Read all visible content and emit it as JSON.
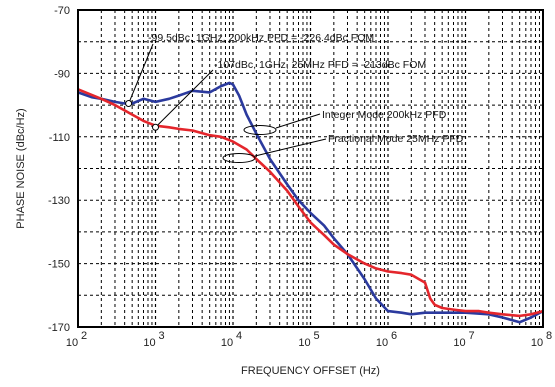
{
  "chart_data": {
    "type": "line",
    "title": "",
    "xlabel": "FREQUENCY OFFSET (Hz)",
    "ylabel": "PHASE NOISE (dBc/Hz)",
    "x_scale": "log",
    "xlim": [
      100,
      100000000
    ],
    "ylim": [
      -170,
      -70
    ],
    "x_ticks": [
      {
        "value": 100,
        "base": "10",
        "exp": "2"
      },
      {
        "value": 1000,
        "base": "10",
        "exp": "3"
      },
      {
        "value": 10000,
        "base": "10",
        "exp": "4"
      },
      {
        "value": 100000,
        "base": "10",
        "exp": "5"
      },
      {
        "value": 1000000,
        "base": "10",
        "exp": "6"
      },
      {
        "value": 10000000,
        "base": "10",
        "exp": "7"
      },
      {
        "value": 100000000,
        "base": "10",
        "exp": "8"
      }
    ],
    "y_ticks": [
      -70,
      -90,
      -110,
      -130,
      -150,
      -170
    ],
    "y_tick_labels": [
      "-70",
      "-90",
      "-110",
      "-130",
      "-150",
      "-170"
    ],
    "grid": true,
    "grid_style": "dashed",
    "series": [
      {
        "name": "Integer Mode 200kHz PFD",
        "color": "#2b3a9e",
        "points": [
          [
            100,
            -96
          ],
          [
            150,
            -97.5
          ],
          [
            200,
            -98
          ],
          [
            300,
            -99
          ],
          [
            400,
            -99.5
          ],
          [
            500,
            -99.5
          ],
          [
            700,
            -98
          ],
          [
            1000,
            -99
          ],
          [
            1500,
            -98
          ],
          [
            2000,
            -97
          ],
          [
            3000,
            -95.5
          ],
          [
            5000,
            -96
          ],
          [
            7000,
            -94
          ],
          [
            9000,
            -93
          ],
          [
            10000,
            -93.5
          ],
          [
            12000,
            -97
          ],
          [
            15000,
            -103
          ],
          [
            20000,
            -109
          ],
          [
            30000,
            -117
          ],
          [
            50000,
            -125
          ],
          [
            70000,
            -130
          ],
          [
            100000,
            -134
          ],
          [
            150000,
            -138
          ],
          [
            200000,
            -142
          ],
          [
            300000,
            -147
          ],
          [
            500000,
            -155
          ],
          [
            700000,
            -161
          ],
          [
            1000000,
            -165
          ],
          [
            1500000,
            -165.5
          ],
          [
            2000000,
            -166
          ],
          [
            3000000,
            -165.5
          ],
          [
            5000000,
            -165.5
          ],
          [
            10000000,
            -165.5
          ],
          [
            20000000,
            -166
          ],
          [
            30000000,
            -167
          ],
          [
            50000000,
            -168.5
          ],
          [
            70000000,
            -167
          ],
          [
            100000000,
            -165
          ]
        ]
      },
      {
        "name": "Fractional Mode 25MHz PFD",
        "color": "#e4262c",
        "points": [
          [
            100,
            -95
          ],
          [
            200,
            -98
          ],
          [
            300,
            -100
          ],
          [
            500,
            -103
          ],
          [
            700,
            -105
          ],
          [
            1000,
            -106.5
          ],
          [
            1500,
            -107
          ],
          [
            2000,
            -107.5
          ],
          [
            3000,
            -108
          ],
          [
            5000,
            -109.5
          ],
          [
            7000,
            -110
          ],
          [
            10000,
            -111.5
          ],
          [
            15000,
            -114
          ],
          [
            20000,
            -117
          ],
          [
            30000,
            -121
          ],
          [
            50000,
            -127
          ],
          [
            70000,
            -132
          ],
          [
            100000,
            -137
          ],
          [
            150000,
            -141
          ],
          [
            200000,
            -144
          ],
          [
            300000,
            -147
          ],
          [
            500000,
            -150
          ],
          [
            700000,
            -151.5
          ],
          [
            1000000,
            -152.5
          ],
          [
            1500000,
            -153
          ],
          [
            2000000,
            -153.5
          ],
          [
            3000000,
            -156
          ],
          [
            3500000,
            -161
          ],
          [
            4000000,
            -163
          ],
          [
            5000000,
            -164
          ],
          [
            7000000,
            -164.5
          ],
          [
            10000000,
            -165
          ],
          [
            15000000,
            -165
          ],
          [
            20000000,
            -165.5
          ],
          [
            30000000,
            -166
          ],
          [
            50000000,
            -166.5
          ],
          [
            70000000,
            -166
          ],
          [
            100000000,
            -165
          ]
        ]
      }
    ],
    "annotations": [
      {
        "text": "-99.5dBc, 1GHz, 200kHz PFD = -226.4dBc FOM",
        "point": [
          450,
          -99.5
        ]
      },
      {
        "text": "-107dBc, 1GHz, 25MHz PFD = -213dBc FOM",
        "point": [
          1000,
          -107
        ]
      }
    ],
    "legend_labels": [
      {
        "text": "Integer Mode 200kHz PFD"
      },
      {
        "text": "Fractional Mode 25MHz PFD"
      }
    ]
  }
}
